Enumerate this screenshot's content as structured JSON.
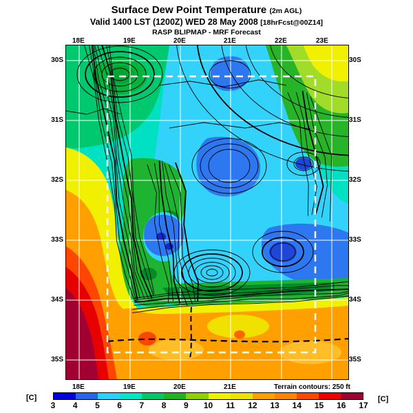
{
  "header": {
    "title": "Surface Dew Point Temperature",
    "title_suffix": "(2m AGL)",
    "valid": "Valid 1400 LST (1200Z) WED 28 May 2008",
    "valid_suffix": "[18hrFcst@00Z14]",
    "model": "RASP BLIPMAP - MRF Forecast"
  },
  "map": {
    "top_lon_labels": [
      "18E",
      "19E",
      "20E",
      "21E",
      "22E",
      "23E"
    ],
    "bottom_lon_labels": [
      "18E",
      "19E",
      "20E",
      "21E"
    ],
    "left_lat_labels": [
      "30S",
      "31S",
      "32S",
      "33S",
      "34S",
      "35S"
    ],
    "right_lat_labels": [
      "30S",
      "31S",
      "32S",
      "33S",
      "34S",
      "35S"
    ],
    "terrain_note": "Terrain contours: 250 ft"
  },
  "colorbar": {
    "unit_left": "[C]",
    "unit_right": "[C]",
    "ticks": [
      "3",
      "4",
      "5",
      "6",
      "7",
      "8",
      "9",
      "10",
      "11",
      "12",
      "13",
      "14",
      "15",
      "16",
      "17"
    ],
    "segment_colors": [
      "#0000E0",
      "#2864F0",
      "#28D2FF",
      "#00E6C8",
      "#00C864",
      "#1EB41E",
      "#8CD200",
      "#F0F000",
      "#F0E100",
      "#FFA000",
      "#FF8200",
      "#FF4600",
      "#F00000",
      "#A00032"
    ]
  },
  "chart_data": {
    "type": "heatmap",
    "title": "Surface Dew Point Temperature (2m AGL)",
    "subtitle": "Valid 1400 LST (1200Z) WED 28 May 2008 [18hrFcst@00Z14]",
    "source": "RASP BLIPMAP - MRF Forecast",
    "units": "C",
    "scale_ticks": [
      3,
      4,
      5,
      6,
      7,
      8,
      9,
      10,
      11,
      12,
      13,
      14,
      15,
      16,
      17
    ],
    "lon_labels": [
      "18E",
      "19E",
      "20E",
      "21E",
      "22E",
      "23E"
    ],
    "lat_labels": [
      "30S",
      "31S",
      "32S",
      "33S",
      "34S",
      "35S"
    ],
    "terrain_contour_interval": "250 ft",
    "pattern_summary": "Low dew points 4-7C (blue/cyan) over the interior plateau and mountains; 7-9C (aqua/green) fringe; high dew points 12-17C (yellow/orange/red/maroon) along the west coast and southern coastal plain, maximum in the southwest corner; dashed white inner forecast domain box; black terrain contours dense along the escarpment."
  }
}
